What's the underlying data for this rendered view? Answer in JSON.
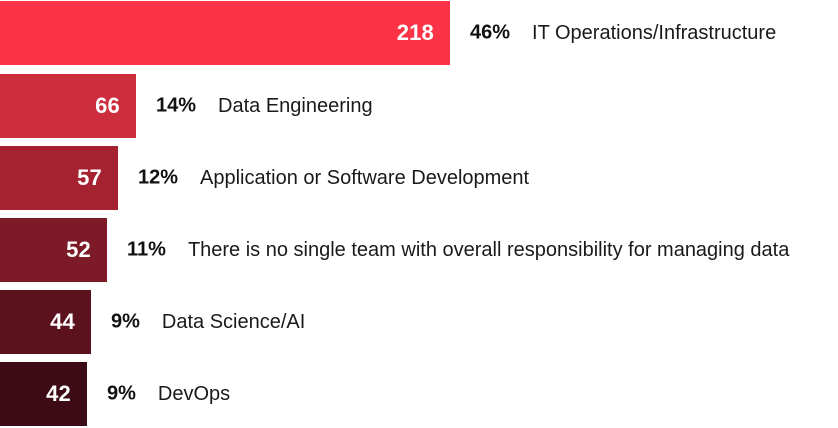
{
  "chart_data": {
    "type": "bar",
    "orientation": "horizontal",
    "title": "",
    "categories": [
      "IT Operations/Infrastructure",
      "Data Engineering",
      "Application or Software Development",
      "There is no single team with overall responsibility for managing data",
      "Data Science/AI",
      "DevOps"
    ],
    "values": [
      218,
      66,
      57,
      52,
      44,
      42
    ],
    "percent_labels": [
      "46%",
      "14%",
      "12%",
      "11%",
      "9%",
      "9%"
    ],
    "colors": [
      "#fc3246",
      "#cc2e3e",
      "#a52231",
      "#7c1a27",
      "#5c121d",
      "#3d0b15"
    ],
    "grid": false,
    "legend": "none"
  }
}
